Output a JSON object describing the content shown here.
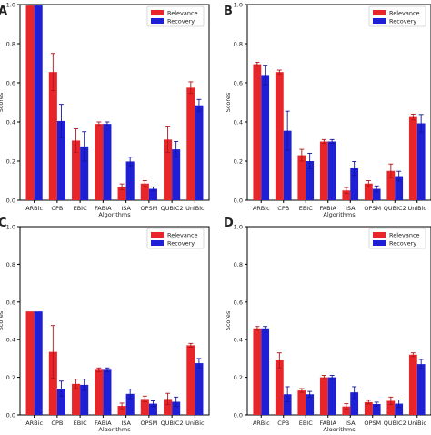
{
  "legend": {
    "entries": [
      {
        "name": "Relevance",
        "color": "#e8262a"
      },
      {
        "name": "Recovery",
        "color": "#1f1fd6"
      }
    ]
  },
  "chart_data": [
    {
      "panel": "A",
      "type": "bar",
      "categories": [
        "ARBic",
        "CPB",
        "EBIC",
        "FABIA",
        "ISA",
        "OPSM",
        "QUBIC2",
        "UniBic"
      ],
      "series": [
        {
          "name": "Relevance",
          "color": "#e8262a",
          "values": [
            0.995,
            0.655,
            0.305,
            0.39,
            0.068,
            0.085,
            0.31,
            0.575
          ],
          "errors": [
            0.0,
            0.095,
            0.06,
            0.01,
            0.015,
            0.015,
            0.065,
            0.03
          ]
        },
        {
          "name": "Recovery",
          "color": "#1f1fd6",
          "values": [
            0.995,
            0.405,
            0.275,
            0.39,
            0.198,
            0.058,
            0.26,
            0.485
          ],
          "errors": [
            0.0,
            0.085,
            0.075,
            0.01,
            0.022,
            0.01,
            0.04,
            0.03
          ]
        }
      ],
      "xlabel": "Algorithms",
      "ylabel": "Scores",
      "ylim": [
        0,
        1.0
      ],
      "yticks": [
        "0.0",
        "0.2",
        "0.4",
        "0.6",
        "0.8",
        "1.0"
      ],
      "legend_position": "top-right"
    },
    {
      "panel": "B",
      "type": "bar",
      "categories": [
        "ARBic",
        "CPB",
        "EBIC",
        "FABIA",
        "ISA",
        "OPSM",
        "QUBIC2",
        "UniBic"
      ],
      "series": [
        {
          "name": "Relevance",
          "color": "#e8262a",
          "values": [
            0.695,
            0.655,
            0.23,
            0.3,
            0.05,
            0.085,
            0.15,
            0.425
          ],
          "errors": [
            0.01,
            0.01,
            0.03,
            0.01,
            0.015,
            0.015,
            0.035,
            0.015
          ]
        },
        {
          "name": "Recovery",
          "color": "#1f1fd6",
          "values": [
            0.64,
            0.355,
            0.2,
            0.3,
            0.163,
            0.058,
            0.123,
            0.393
          ],
          "errors": [
            0.05,
            0.1,
            0.04,
            0.01,
            0.035,
            0.015,
            0.025,
            0.045
          ]
        }
      ],
      "xlabel": "Algorithms",
      "ylabel": "Scores",
      "ylim": [
        0,
        1.0
      ],
      "yticks": [
        "0.0",
        "0.2",
        "0.4",
        "0.6",
        "0.8",
        "1.0"
      ],
      "legend_position": "top-right"
    },
    {
      "panel": "C",
      "type": "bar",
      "categories": [
        "ARBic",
        "CPB",
        "EBIC",
        "FABIA",
        "ISA",
        "OPSM",
        "QUBIC2",
        "UniBic"
      ],
      "series": [
        {
          "name": "Relevance",
          "color": "#e8262a",
          "values": [
            0.55,
            0.335,
            0.165,
            0.24,
            0.048,
            0.085,
            0.085,
            0.37
          ],
          "errors": [
            0.0,
            0.14,
            0.025,
            0.01,
            0.015,
            0.015,
            0.03,
            0.01
          ]
        },
        {
          "name": "Recovery",
          "color": "#1f1fd6",
          "values": [
            0.55,
            0.14,
            0.16,
            0.24,
            0.112,
            0.06,
            0.07,
            0.275
          ],
          "errors": [
            0.0,
            0.04,
            0.03,
            0.01,
            0.025,
            0.015,
            0.025,
            0.025
          ]
        }
      ],
      "xlabel": "Algorithms",
      "ylabel": "Scores",
      "ylim": [
        0,
        1.0
      ],
      "yticks": [
        "0.0",
        "0.2",
        "0.4",
        "0.6",
        "0.8",
        "1.0"
      ],
      "legend_position": "top-right"
    },
    {
      "panel": "D",
      "type": "bar",
      "categories": [
        "ARBic",
        "CPB",
        "EBIC",
        "FABIA",
        "ISA",
        "OPSM",
        "QUBIC2",
        "UniBic"
      ],
      "series": [
        {
          "name": "Relevance",
          "color": "#e8262a",
          "values": [
            0.46,
            0.29,
            0.13,
            0.2,
            0.045,
            0.068,
            0.075,
            0.32
          ],
          "errors": [
            0.01,
            0.04,
            0.01,
            0.01,
            0.015,
            0.01,
            0.02,
            0.01
          ]
        },
        {
          "name": "Recovery",
          "color": "#1f1fd6",
          "values": [
            0.46,
            0.11,
            0.11,
            0.2,
            0.12,
            0.058,
            0.06,
            0.27
          ],
          "errors": [
            0.01,
            0.04,
            0.015,
            0.01,
            0.03,
            0.01,
            0.02,
            0.025
          ]
        }
      ],
      "xlabel": "Algorithms",
      "ylabel": "Scores",
      "ylim": [
        0,
        1.0
      ],
      "yticks": [
        "0.0",
        "0.2",
        "0.4",
        "0.6",
        "0.8",
        "1.0"
      ],
      "legend_position": "top-right"
    }
  ]
}
